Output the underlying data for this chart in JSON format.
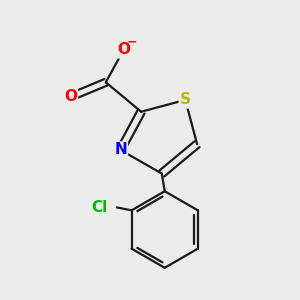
{
  "bg_color": "#ebebeb",
  "bond_color": "#1a1a1a",
  "bond_width": 1.6,
  "atom_colors": {
    "O": "#ff0000",
    "N": "#0000ff",
    "S": "#b8b800",
    "Cl": "#00bb00",
    "C": "#1a1a1a"
  },
  "font_size_atom": 11,
  "font_size_charge": 9,
  "figsize": [
    3.0,
    3.0
  ],
  "dpi": 100
}
